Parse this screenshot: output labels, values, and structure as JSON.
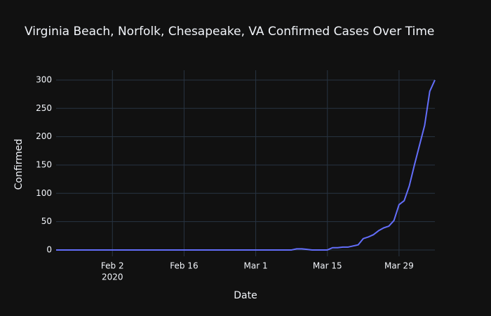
{
  "chart_data": {
    "type": "line",
    "title": "Virginia Beach, Norfolk, Chesapeake, VA Confirmed Cases Over Time",
    "x_label": "Date",
    "y_label": "Confirmed",
    "x": [
      "2020-01-22",
      "2020-01-23",
      "2020-01-24",
      "2020-01-25",
      "2020-01-26",
      "2020-01-27",
      "2020-01-28",
      "2020-01-29",
      "2020-01-30",
      "2020-01-31",
      "2020-02-01",
      "2020-02-02",
      "2020-02-03",
      "2020-02-04",
      "2020-02-05",
      "2020-02-06",
      "2020-02-07",
      "2020-02-08",
      "2020-02-09",
      "2020-02-10",
      "2020-02-11",
      "2020-02-12",
      "2020-02-13",
      "2020-02-14",
      "2020-02-15",
      "2020-02-16",
      "2020-02-17",
      "2020-02-18",
      "2020-02-19",
      "2020-02-20",
      "2020-02-21",
      "2020-02-22",
      "2020-02-23",
      "2020-02-24",
      "2020-02-25",
      "2020-02-26",
      "2020-02-27",
      "2020-02-28",
      "2020-02-29",
      "2020-03-01",
      "2020-03-02",
      "2020-03-03",
      "2020-03-04",
      "2020-03-05",
      "2020-03-06",
      "2020-03-07",
      "2020-03-08",
      "2020-03-09",
      "2020-03-10",
      "2020-03-11",
      "2020-03-12",
      "2020-03-13",
      "2020-03-14",
      "2020-03-15",
      "2020-03-16",
      "2020-03-17",
      "2020-03-18",
      "2020-03-19",
      "2020-03-20",
      "2020-03-21",
      "2020-03-22",
      "2020-03-23",
      "2020-03-24",
      "2020-03-25",
      "2020-03-26",
      "2020-03-27",
      "2020-03-28",
      "2020-03-29",
      "2020-03-30",
      "2020-03-31",
      "2020-04-01",
      "2020-04-02",
      "2020-04-03",
      "2020-04-04",
      "2020-04-05"
    ],
    "values": [
      0,
      0,
      0,
      0,
      0,
      0,
      0,
      0,
      0,
      0,
      0,
      0,
      0,
      0,
      0,
      0,
      0,
      0,
      0,
      0,
      0,
      0,
      0,
      0,
      0,
      0,
      0,
      0,
      0,
      0,
      0,
      0,
      0,
      0,
      0,
      0,
      0,
      0,
      0,
      0,
      0,
      0,
      0,
      0,
      0,
      0,
      0,
      2,
      2,
      1,
      0,
      0,
      0,
      0,
      4,
      4,
      5,
      5,
      7,
      9,
      20,
      23,
      27,
      34,
      39,
      42,
      52,
      80,
      87,
      113,
      150,
      185,
      220,
      280,
      300
    ],
    "color": "#636efa",
    "xlim": [
      "2020-01-22",
      "2020-04-05"
    ],
    "xticks": [
      {
        "value": "2020-02-02",
        "label": "Feb 2"
      },
      {
        "value": "2020-02-16",
        "label": "Feb 16"
      },
      {
        "value": "2020-03-01",
        "label": "Mar 1"
      },
      {
        "value": "2020-03-15",
        "label": "Mar 15"
      },
      {
        "value": "2020-03-29",
        "label": "Mar 29"
      }
    ],
    "xtick_year": "2020",
    "ylim": [
      -11.2,
      317.3
    ],
    "yticks": [
      0,
      50,
      100,
      150,
      200,
      250,
      300
    ],
    "grid": true
  }
}
